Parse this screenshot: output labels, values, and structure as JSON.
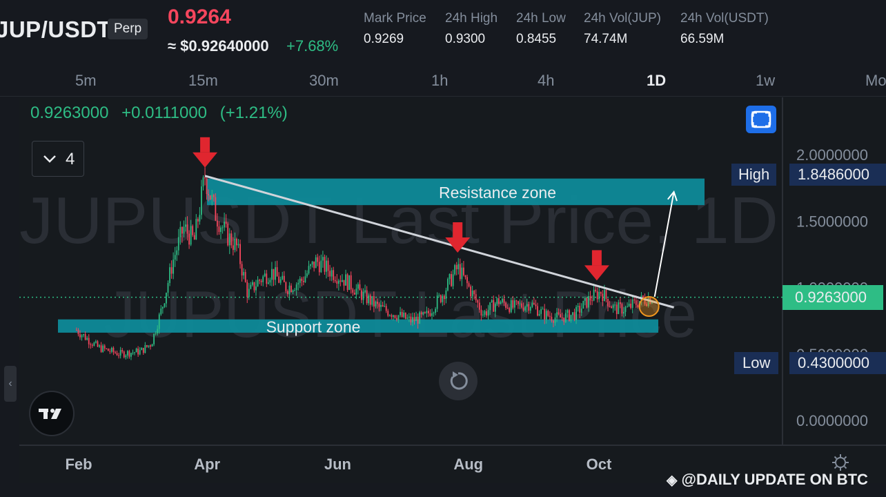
{
  "header": {
    "symbol": "JUP/USDT",
    "contract_type": "Perp",
    "last_price": "0.9264",
    "usd_price": "≈ $0.92640000",
    "change_pct": "+7.68%",
    "stats": [
      {
        "label": "Mark Price",
        "value": "0.9269"
      },
      {
        "label": "24h High",
        "value": "0.9300"
      },
      {
        "label": "24h Low",
        "value": "0.8455"
      },
      {
        "label": "24h Vol(JUP)",
        "value": "74.74M"
      },
      {
        "label": "24h Vol(USDT)",
        "value": "66.59M"
      }
    ]
  },
  "intervals": [
    "5m",
    "15m",
    "30m",
    "1h",
    "4h",
    "1D",
    "1w",
    "Mo"
  ],
  "active_interval": "1D",
  "legend": {
    "price": "0.9263000",
    "change": "+0.0111000",
    "change_pct": "(+1.21%)"
  },
  "indicator_count": "4",
  "watermark": {
    "line1": "JUPUSDT Last Price, 1D",
    "line2": "JUPUSDT Last Price"
  },
  "price_axis": {
    "ticks": [
      "2.0000000",
      "1.5000000",
      "1.0000000",
      "0.5000000",
      "0.0000000"
    ]
  },
  "time_axis": {
    "ticks": [
      "Feb",
      "Apr",
      "Jun",
      "Aug",
      "Oct"
    ]
  },
  "badges": {
    "high_label": "High",
    "high_value": "1.8486000",
    "low_label": "Low",
    "low_value": "0.4300000",
    "current_value": "0.9263000"
  },
  "annotations": {
    "resistance": "Resistance zone",
    "support": "Support zone"
  },
  "credit": "@DAILY UPDATE ON BTC",
  "colors": {
    "up": "#2ebd85",
    "down": "#f6465d",
    "zone": "#0e8a99",
    "arrow": "#e0262f",
    "trendline": "#d0d4da",
    "accent": "#1e6ee8"
  },
  "chart_data": {
    "type": "candlestick",
    "x_ticks": [
      "Feb",
      "Apr",
      "Jun",
      "Aug",
      "Oct"
    ],
    "y_ticks": [
      2.0,
      1.5,
      1.0,
      0.5,
      0.0
    ],
    "ylim": [
      0.0,
      2.0
    ],
    "current_price": 0.9263,
    "high": 1.8486,
    "low": 0.43,
    "close_path": [
      {
        "date": "2024-01-31",
        "close": 0.68
      },
      {
        "date": "2024-02-10",
        "close": 0.55
      },
      {
        "date": "2024-02-20",
        "close": 0.5
      },
      {
        "date": "2024-03-01",
        "close": 0.52
      },
      {
        "date": "2024-03-06",
        "close": 0.58
      },
      {
        "date": "2024-03-11",
        "close": 0.85
      },
      {
        "date": "2024-03-16",
        "close": 1.2
      },
      {
        "date": "2024-03-21",
        "close": 1.45
      },
      {
        "date": "2024-03-26",
        "close": 1.35
      },
      {
        "date": "2024-03-31",
        "close": 1.84
      },
      {
        "date": "2024-04-05",
        "close": 1.55
      },
      {
        "date": "2024-04-10",
        "close": 1.4
      },
      {
        "date": "2024-04-15",
        "close": 1.3
      },
      {
        "date": "2024-04-20",
        "close": 0.95
      },
      {
        "date": "2024-04-25",
        "close": 1.05
      },
      {
        "date": "2024-05-01",
        "close": 1.12
      },
      {
        "date": "2024-05-08",
        "close": 1.0
      },
      {
        "date": "2024-05-15",
        "close": 1.05
      },
      {
        "date": "2024-05-22",
        "close": 1.2
      },
      {
        "date": "2024-05-29",
        "close": 1.12
      },
      {
        "date": "2024-06-05",
        "close": 1.05
      },
      {
        "date": "2024-06-12",
        "close": 0.95
      },
      {
        "date": "2024-06-20",
        "close": 0.85
      },
      {
        "date": "2024-06-28",
        "close": 0.8
      },
      {
        "date": "2024-07-05",
        "close": 0.75
      },
      {
        "date": "2024-07-12",
        "close": 0.78
      },
      {
        "date": "2024-07-20",
        "close": 0.95
      },
      {
        "date": "2024-07-27",
        "close": 1.15
      },
      {
        "date": "2024-08-03",
        "close": 0.95
      },
      {
        "date": "2024-08-08",
        "close": 0.8
      },
      {
        "date": "2024-08-15",
        "close": 0.9
      },
      {
        "date": "2024-08-22",
        "close": 0.85
      },
      {
        "date": "2024-08-30",
        "close": 0.88
      },
      {
        "date": "2024-09-05",
        "close": 0.8
      },
      {
        "date": "2024-09-12",
        "close": 0.77
      },
      {
        "date": "2024-09-20",
        "close": 0.8
      },
      {
        "date": "2024-09-27",
        "close": 0.92
      },
      {
        "date": "2024-10-02",
        "close": 0.97
      },
      {
        "date": "2024-10-08",
        "close": 0.84
      },
      {
        "date": "2024-10-14",
        "close": 0.84
      },
      {
        "date": "2024-10-20",
        "close": 0.9
      },
      {
        "date": "2024-10-26",
        "close": 0.9263
      }
    ],
    "resistance_zone": [
      1.62,
      1.82
    ],
    "support_zone": [
      0.66,
      0.76
    ],
    "trendline": [
      {
        "date": "2024-03-31",
        "price": 1.84
      },
      {
        "date": "2024-11-05",
        "price": 0.85
      }
    ],
    "projection": [
      {
        "date": "2024-10-27",
        "price": 0.93
      },
      {
        "date": "2024-11-05",
        "price": 1.72
      }
    ],
    "marker_arrows": [
      {
        "date": "2024-03-31",
        "price": 1.84
      },
      {
        "date": "2024-07-27",
        "price": 1.2
      },
      {
        "date": "2024-09-30",
        "price": 0.99
      }
    ]
  }
}
